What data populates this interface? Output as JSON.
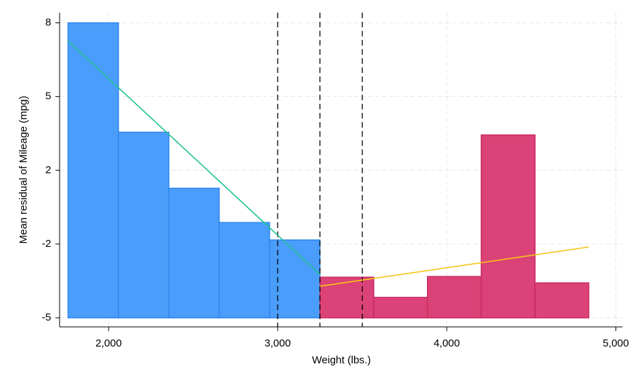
{
  "chart_data": {
    "type": "histogram",
    "xlabel": "Weight (lbs.)",
    "ylabel": "Mean residual of Mileage (mpg)",
    "xlim": [
      1710,
      5040
    ],
    "ylim": [
      -5.4,
      8.45
    ],
    "xticks": [
      {
        "value": 2000,
        "label": "2,000"
      },
      {
        "value": 3000,
        "label": "3,000"
      },
      {
        "value": 4000,
        "label": "4,000"
      },
      {
        "value": 5000,
        "label": "5,000"
      }
    ],
    "yticks": [
      -5,
      {
        "value": -1.75,
        "label": "-2"
      },
      {
        "value": 1.5,
        "label": "2"
      },
      {
        "value": 4.75,
        "label": "5"
      },
      8
    ],
    "grid": true,
    "series": [
      {
        "color": "#4a9dfa",
        "edge": "#2f86ee",
        "bins": [
          1760,
          2058,
          2356,
          2654,
          2952,
          3250
        ],
        "values": [
          8,
          3.18,
          0.71,
          -0.8,
          -1.57
        ]
      },
      {
        "color": "#db4277",
        "edge": "#c92a63",
        "bins": [
          3250,
          3568,
          3886,
          4204,
          4522,
          4840
        ],
        "values": [
          -3.21,
          -4.1,
          -3.18,
          3.06,
          -3.46
        ]
      }
    ],
    "lines": [
      {
        "color": "#1fc48f",
        "x": [
          1760,
          3250
        ],
        "values": [
          7.2,
          -3.09
        ]
      },
      {
        "color": "#f5c518",
        "x": [
          3250,
          4840
        ],
        "values": [
          -3.61,
          -1.88
        ]
      }
    ],
    "vlines": [
      3000,
      3250,
      3500
    ]
  }
}
